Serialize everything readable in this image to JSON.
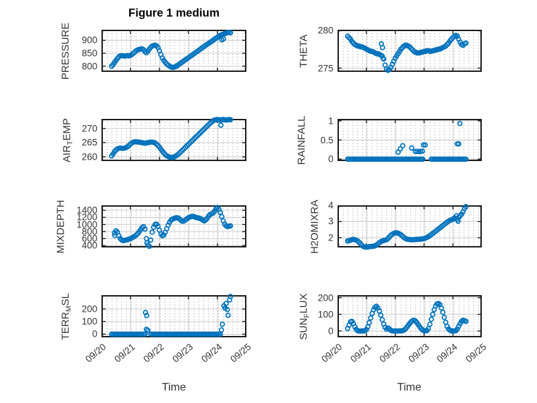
{
  "figure": {
    "title": "Figure 1 medium",
    "xlabel": "Time"
  },
  "style": {
    "marker_color": "#0072BD",
    "frame_color": "#1c1c1c",
    "grid_color": "#cccccc",
    "minor_dot_color": "#b9b9b9",
    "text_color": "#333333",
    "background": "#ffffff"
  },
  "axis": {
    "xlim": [
      0,
      5
    ],
    "t_start": 0.35,
    "t_step": 0.05,
    "xtick_labels": [
      "09/20",
      "09/21",
      "09/22",
      "09/23",
      "09/24",
      "09/25"
    ]
  },
  "chart_data": [
    {
      "name": "PRESSURE",
      "type": "scatter",
      "marker": "open-circle",
      "row": 0,
      "col": 0,
      "ylabel": [
        {
          "text": "PRESSURE"
        }
      ],
      "ylim": [
        778,
        941
      ],
      "yticks": [
        800,
        850,
        900
      ],
      "values": [
        800,
        806,
        814,
        822,
        830,
        836,
        840,
        841,
        840,
        839,
        840,
        841,
        840,
        842,
        845,
        850,
        855,
        860,
        863,
        865,
        866,
        867,
        864,
        856,
        852,
        858,
        866,
        873,
        878,
        880,
        881,
        879,
        872,
        860,
        845,
        832,
        822,
        815,
        809,
        804,
        800,
        797,
        795,
        796,
        798,
        801,
        805,
        809,
        813,
        817,
        821,
        825,
        829,
        833,
        837,
        841,
        845,
        849,
        853,
        857,
        861,
        865,
        869,
        873,
        877,
        881,
        885,
        888,
        892,
        896,
        900,
        904,
        908,
        912,
        916,
        919,
        922,
        924,
        926,
        928,
        930,
        931,
        929
      ],
      "extra": [
        [
          4.15,
          902
        ],
        [
          4.21,
          906
        ]
      ]
    },
    {
      "name": "THETA",
      "type": "scatter",
      "marker": "open-circle",
      "row": 0,
      "col": 1,
      "ylabel": [
        {
          "text": "THETA"
        }
      ],
      "ylim": [
        274.5,
        280.05
      ],
      "yticks": [
        275,
        280
      ],
      "values": [
        279.2,
        279.0,
        278.8,
        278.5,
        278.3,
        278.1,
        278.0,
        277.9,
        277.9,
        277.8,
        277.8,
        277.7,
        277.6,
        277.5,
        277.4,
        277.3,
        277.2,
        277.2,
        277.1,
        277.0,
        276.9,
        276.9,
        276.8,
        276.7,
        276.6,
        276.2,
        275.4,
        274.9,
        274.7,
        274.8,
        275.1,
        275.5,
        275.9,
        276.3,
        276.6,
        276.9,
        277.2,
        277.5,
        277.7,
        277.9,
        278.0,
        278.0,
        277.9,
        277.8,
        277.6,
        277.4,
        277.2,
        277.1,
        277.0,
        277.0,
        277.0,
        277.1,
        277.1,
        277.2,
        277.2,
        277.3,
        277.3,
        277.2,
        277.2,
        277.3,
        277.3,
        277.4,
        277.4,
        277.5,
        277.5,
        277.6,
        277.7,
        277.8,
        277.9,
        278.1,
        278.3,
        278.6,
        278.8,
        279.0,
        279.2,
        279.3,
        279.2,
        278.8,
        278.4,
        278.1,
        278.0,
        278.2,
        278.3
      ],
      "extra": [
        [
          1.52,
          278.2
        ],
        [
          1.56,
          277.7
        ],
        [
          1.58,
          276.3
        ]
      ]
    },
    {
      "name": "AIR_TEMP",
      "type": "scatter",
      "marker": "open-circle",
      "row": 1,
      "col": 0,
      "ylabel": [
        {
          "text": "AIR"
        },
        {
          "text": "T",
          "sub": true
        },
        {
          "text": "EMP"
        }
      ],
      "ylim": [
        258.5,
        273.4
      ],
      "yticks": [
        260,
        265,
        270
      ],
      "values": [
        260.3,
        261.0,
        261.8,
        262.4,
        262.8,
        263.0,
        263.1,
        263.0,
        263.0,
        263.1,
        263.3,
        263.6,
        264.0,
        264.5,
        264.9,
        265.2,
        265.3,
        265.3,
        265.2,
        265.2,
        265.1,
        265.0,
        264.9,
        264.8,
        264.9,
        265.0,
        265.1,
        265.2,
        265.2,
        265.1,
        264.9,
        264.5,
        264.0,
        263.4,
        262.7,
        262.0,
        261.4,
        260.8,
        260.4,
        260.1,
        259.9,
        259.8,
        259.8,
        259.9,
        260.2,
        260.5,
        260.9,
        261.4,
        261.9,
        262.4,
        262.9,
        263.4,
        263.9,
        264.4,
        264.9,
        265.4,
        265.9,
        266.4,
        266.9,
        267.4,
        267.9,
        268.4,
        268.9,
        269.4,
        269.9,
        270.4,
        270.9,
        271.4,
        271.9,
        272.3,
        272.7,
        273.0,
        273.1,
        273.2,
        273.1,
        273.0,
        273.1,
        273.2,
        273.1,
        273.0,
        273.1,
        273.2,
        273.1
      ],
      "extra": [
        [
          4.12,
          271.2
        ]
      ]
    },
    {
      "name": "RAINFALL",
      "type": "scatter",
      "marker": "open-circle",
      "row": 1,
      "col": 1,
      "ylabel": [
        {
          "text": "RAINFALL"
        }
      ],
      "ylim": [
        -0.05,
        1.05
      ],
      "yticks": [
        0,
        0.5,
        1
      ],
      "values": [
        0,
        0,
        0,
        0,
        0,
        0,
        0,
        0,
        0,
        0,
        0,
        0,
        0,
        0,
        0,
        0,
        0,
        0,
        0,
        0,
        0,
        0,
        0,
        0,
        0,
        0,
        0,
        0,
        0,
        0,
        0,
        0,
        0,
        0,
        0,
        0,
        0,
        0,
        0,
        0,
        0,
        0,
        0,
        0,
        0,
        0,
        0,
        0,
        0,
        0,
        0,
        0,
        0,
        null,
        null,
        null,
        null,
        null,
        0,
        0,
        0,
        0,
        0,
        0,
        0,
        0,
        0,
        0,
        0,
        0,
        0,
        0,
        0,
        0,
        0,
        0,
        0,
        0,
        0,
        0,
        0,
        0,
        0
      ],
      "extra": [
        [
          2.1,
          0.18
        ],
        [
          2.18,
          0.27
        ],
        [
          2.26,
          0.35
        ],
        [
          2.57,
          0.29
        ],
        [
          2.7,
          0.2
        ],
        [
          2.76,
          0.2
        ],
        [
          2.82,
          0.2
        ],
        [
          2.88,
          0.2
        ],
        [
          2.94,
          0.21
        ],
        [
          2.98,
          0.37
        ],
        [
          3.04,
          0.37
        ],
        [
          4.15,
          0.4
        ],
        [
          4.2,
          0.4
        ],
        [
          4.24,
          0.93
        ]
      ]
    },
    {
      "name": "MIXDEPTH",
      "type": "scatter",
      "marker": "open-circle",
      "row": 2,
      "col": 0,
      "ylabel": [
        {
          "text": "MIXDEPTH"
        }
      ],
      "ylim": [
        350,
        1540
      ],
      "yticks": [
        400,
        600,
        800,
        1000,
        1200,
        1400
      ],
      "values": [
        null,
        null,
        760,
        820,
        780,
        680,
        600,
        560,
        545,
        550,
        560,
        570,
        585,
        600,
        620,
        645,
        670,
        700,
        740,
        790,
        850,
        910,
        940,
        870,
        600,
        420,
        380,
        560,
        780,
        920,
        1000,
        1010,
        950,
        840,
        730,
        680,
        700,
        780,
        880,
        980,
        1060,
        1120,
        1150,
        1170,
        1180,
        1190,
        1180,
        1150,
        1110,
        1090,
        1100,
        1130,
        1160,
        1190,
        1210,
        1220,
        1230,
        1220,
        1200,
        1190,
        1180,
        1170,
        1150,
        1120,
        1100,
        1130,
        1180,
        1240,
        1280,
        1300,
        1320,
        1370,
        1440,
        1480,
        1430,
        1340,
        1220,
        1100,
        1010,
        960,
        940,
        950,
        960
      ],
      "extra": [
        [
          0.46,
          690
        ],
        [
          1.57,
          480
        ]
      ]
    },
    {
      "name": "H2OMIXRA",
      "type": "scatter",
      "marker": "open-circle",
      "row": 2,
      "col": 1,
      "ylabel": [
        {
          "text": "H2OMIXRA"
        }
      ],
      "ylim": [
        1.4,
        4.0
      ],
      "yticks": [
        2,
        3,
        4
      ],
      "values": [
        1.8,
        1.82,
        1.85,
        1.88,
        1.9,
        1.88,
        1.85,
        1.8,
        1.72,
        1.62,
        1.52,
        1.46,
        1.43,
        1.42,
        1.43,
        1.45,
        1.46,
        1.47,
        1.48,
        1.5,
        1.55,
        1.62,
        1.7,
        1.76,
        1.8,
        1.83,
        1.85,
        1.88,
        1.95,
        2.05,
        2.15,
        2.22,
        2.27,
        2.3,
        2.3,
        2.28,
        2.24,
        2.18,
        2.1,
        2.02,
        1.96,
        1.92,
        1.9,
        1.89,
        1.88,
        1.88,
        1.88,
        1.89,
        1.9,
        1.9,
        1.91,
        1.92,
        1.93,
        1.95,
        1.98,
        2.02,
        2.07,
        2.13,
        2.2,
        2.27,
        2.33,
        2.4,
        2.47,
        2.54,
        2.61,
        2.68,
        2.75,
        2.82,
        2.89,
        2.96,
        3.02,
        3.08,
        3.1,
        3.15,
        3.22,
        3.2,
        3.12,
        3.25,
        3.35,
        3.45,
        3.6,
        3.8,
        3.92
      ],
      "extra": [
        [
          4.12,
          3.35
        ],
        [
          4.18,
          3.02
        ]
      ]
    },
    {
      "name": "TERR_MSL",
      "type": "scatter",
      "marker": "open-circle",
      "row": 3,
      "col": 0,
      "ylabel": [
        {
          "text": "TERR"
        },
        {
          "text": "M",
          "sub": true
        },
        {
          "text": "SL"
        }
      ],
      "ylim": [
        -25,
        310
      ],
      "yticks": [
        0,
        100,
        200
      ],
      "values": [
        0,
        0,
        0,
        0,
        0,
        0,
        0,
        0,
        0,
        0,
        0,
        0,
        0,
        0,
        0,
        0,
        0,
        0,
        0,
        0,
        0,
        0,
        0,
        0,
        null,
        null,
        null,
        0,
        0,
        0,
        0,
        0,
        0,
        0,
        0,
        0,
        0,
        0,
        0,
        0,
        0,
        0,
        0,
        0,
        0,
        0,
        0,
        0,
        0,
        0,
        0,
        0,
        0,
        0,
        0,
        0,
        0,
        0,
        0,
        0,
        0,
        0,
        0,
        0,
        0,
        0,
        0,
        0,
        0,
        0,
        0,
        0,
        0,
        0,
        0,
        0,
        null,
        null,
        null,
        null,
        null,
        null,
        null
      ],
      "extra": [
        [
          1.52,
          172
        ],
        [
          1.56,
          148
        ],
        [
          1.55,
          38
        ],
        [
          1.6,
          30
        ],
        [
          4.14,
          34
        ],
        [
          4.17,
          79
        ],
        [
          4.22,
          226
        ],
        [
          4.26,
          208
        ],
        [
          4.3,
          244
        ],
        [
          4.34,
          196
        ],
        [
          4.37,
          150
        ],
        [
          4.42,
          272
        ],
        [
          4.45,
          300
        ]
      ]
    },
    {
      "name": "SUN_FLUX",
      "type": "scatter",
      "marker": "open-circle",
      "row": 3,
      "col": 1,
      "ylabel": [
        {
          "text": "SUN"
        },
        {
          "text": "F",
          "sub": true
        },
        {
          "text": "LUX"
        }
      ],
      "ylim": [
        -38,
        215
      ],
      "yticks": [
        0,
        100,
        200
      ],
      "values": [
        15,
        35,
        55,
        58,
        45,
        25,
        10,
        2,
        0,
        0,
        0,
        0,
        2,
        8,
        25,
        50,
        78,
        105,
        128,
        142,
        148,
        138,
        120,
        95,
        68,
        42,
        22,
        10,
        18,
        12,
        4,
        1,
        0,
        0,
        0,
        0,
        0,
        1,
        2,
        5,
        12,
        22,
        33,
        45,
        55,
        62,
        65,
        60,
        50,
        38,
        25,
        14,
        6,
        2,
        1,
        3,
        15,
        40,
        70,
        100,
        128,
        150,
        162,
        165,
        158,
        138,
        112,
        82,
        52,
        28,
        12,
        4,
        1,
        0,
        0,
        2,
        12,
        28,
        45,
        58,
        65,
        62,
        58
      ],
      "extra": []
    }
  ]
}
